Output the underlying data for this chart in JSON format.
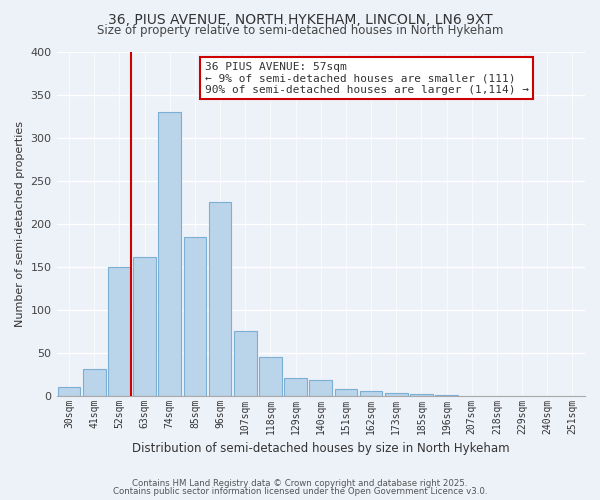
{
  "title": "36, PIUS AVENUE, NORTH HYKEHAM, LINCOLN, LN6 9XT",
  "subtitle": "Size of property relative to semi-detached houses in North Hykeham",
  "xlabel": "Distribution of semi-detached houses by size in North Hykeham",
  "ylabel": "Number of semi-detached properties",
  "categories": [
    "30sqm",
    "41sqm",
    "52sqm",
    "63sqm",
    "74sqm",
    "85sqm",
    "96sqm",
    "107sqm",
    "118sqm",
    "129sqm",
    "140sqm",
    "151sqm",
    "162sqm",
    "173sqm",
    "185sqm",
    "196sqm",
    "207sqm",
    "218sqm",
    "229sqm",
    "240sqm",
    "251sqm"
  ],
  "values": [
    10,
    31,
    150,
    161,
    330,
    184,
    225,
    75,
    45,
    20,
    18,
    8,
    5,
    3,
    2,
    1,
    0,
    0,
    0,
    0,
    0
  ],
  "bar_color": "#bad4ea",
  "bar_edge_color": "#7bafd4",
  "vline_color": "#cc0000",
  "annotation_title": "36 PIUS AVENUE: 57sqm",
  "annotation_line1": "← 9% of semi-detached houses are smaller (111)",
  "annotation_line2": "90% of semi-detached houses are larger (1,114) →",
  "annotation_box_color": "#ffffff",
  "annotation_box_edge": "#cc0000",
  "ylim": [
    0,
    400
  ],
  "yticks": [
    0,
    50,
    100,
    150,
    200,
    250,
    300,
    350,
    400
  ],
  "footnote1": "Contains HM Land Registry data © Crown copyright and database right 2025.",
  "footnote2": "Contains public sector information licensed under the Open Government Licence v3.0.",
  "bg_color": "#edf1f8",
  "plot_bg_color": "#edf1f8"
}
